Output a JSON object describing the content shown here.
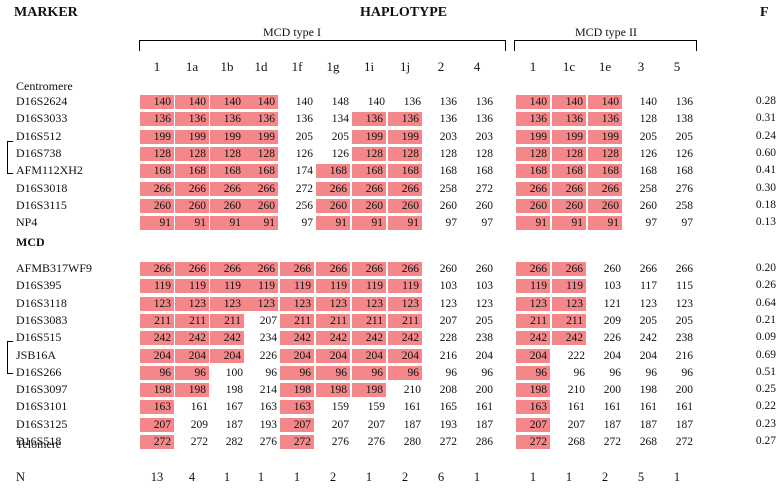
{
  "headers": {
    "marker": "MARKER",
    "haplotype": "HAPLOTYPE",
    "f": "F"
  },
  "groups": [
    {
      "label": "MCD type I",
      "from": 0,
      "to": 9
    },
    {
      "label": "MCD type II",
      "from": 10,
      "to": 14
    }
  ],
  "columns": [
    "1",
    "1a",
    "1b",
    "1d",
    "1f",
    "1g",
    "1i",
    "1j",
    "2",
    "4",
    "1",
    "1c",
    "1e",
    "3",
    "5"
  ],
  "sections": {
    "centromere": "Centromere",
    "mcd": "MCD",
    "telomere": "Telomere"
  },
  "highlight_color": "#f4878a",
  "block1": [
    {
      "marker": "D16S2624",
      "values": [
        "140",
        "140",
        "140",
        "140",
        "140",
        "148",
        "140",
        "136",
        "136",
        "136",
        "140",
        "140",
        "140",
        "140",
        "136"
      ],
      "hl": [
        0,
        1,
        2,
        3,
        10,
        11,
        12
      ],
      "f": "0.28"
    },
    {
      "marker": "D16S3033",
      "values": [
        "136",
        "136",
        "136",
        "136",
        "136",
        "134",
        "136",
        "136",
        "136",
        "136",
        "136",
        "136",
        "136",
        "128",
        "138"
      ],
      "hl": [
        0,
        1,
        2,
        3,
        6,
        7,
        10,
        11,
        12
      ],
      "f": "0.31"
    },
    {
      "marker": "D16S512",
      "values": [
        "199",
        "199",
        "199",
        "199",
        "205",
        "205",
        "199",
        "199",
        "203",
        "203",
        "199",
        "199",
        "199",
        "205",
        "205"
      ],
      "hl": [
        0,
        1,
        2,
        3,
        6,
        7,
        10,
        11,
        12
      ],
      "f": "0.24"
    },
    {
      "marker": "D16S738",
      "values": [
        "128",
        "128",
        "128",
        "128",
        "126",
        "126",
        "128",
        "128",
        "128",
        "128",
        "128",
        "128",
        "128",
        "126",
        "126"
      ],
      "hl": [
        0,
        1,
        2,
        3,
        6,
        7,
        10,
        11,
        12
      ],
      "f": "0.60"
    },
    {
      "marker": "AFM112XH2",
      "values": [
        "168",
        "168",
        "168",
        "168",
        "174",
        "168",
        "168",
        "168",
        "168",
        "168",
        "168",
        "168",
        "168",
        "168",
        "168"
      ],
      "hl": [
        0,
        1,
        2,
        3,
        5,
        6,
        7,
        10,
        11,
        12
      ],
      "f": "0.41"
    },
    {
      "marker": "D16S3018",
      "values": [
        "266",
        "266",
        "266",
        "266",
        "272",
        "266",
        "266",
        "266",
        "258",
        "272",
        "266",
        "266",
        "266",
        "258",
        "276"
      ],
      "hl": [
        0,
        1,
        2,
        3,
        5,
        6,
        7,
        10,
        11,
        12
      ],
      "f": "0.30"
    },
    {
      "marker": "D16S3115",
      "values": [
        "260",
        "260",
        "260",
        "260",
        "256",
        "260",
        "260",
        "260",
        "260",
        "260",
        "260",
        "260",
        "260",
        "260",
        "258"
      ],
      "hl": [
        0,
        1,
        2,
        3,
        5,
        6,
        7,
        10,
        11,
        12
      ],
      "f": "0.18"
    },
    {
      "marker": "NP4",
      "values": [
        "91",
        "91",
        "91",
        "91",
        "97",
        "91",
        "91",
        "91",
        "97",
        "97",
        "91",
        "91",
        "91",
        "97",
        "97"
      ],
      "hl": [
        0,
        1,
        2,
        3,
        5,
        6,
        7,
        10,
        11,
        12
      ],
      "f": "0.13"
    }
  ],
  "block2": [
    {
      "marker": "AFMB317WF9",
      "values": [
        "266",
        "266",
        "266",
        "266",
        "266",
        "266",
        "266",
        "266",
        "260",
        "260",
        "266",
        "266",
        "260",
        "266",
        "266"
      ],
      "hl": [
        0,
        1,
        2,
        3,
        4,
        5,
        6,
        7,
        10,
        11
      ],
      "f": "0.20"
    },
    {
      "marker": "D16S395",
      "values": [
        "119",
        "119",
        "119",
        "119",
        "119",
        "119",
        "119",
        "119",
        "103",
        "103",
        "119",
        "119",
        "103",
        "117",
        "115"
      ],
      "hl": [
        0,
        1,
        2,
        3,
        4,
        5,
        6,
        7,
        10,
        11
      ],
      "f": "0.26"
    },
    {
      "marker": "D16S3118",
      "values": [
        "123",
        "123",
        "123",
        "123",
        "123",
        "123",
        "123",
        "123",
        "123",
        "123",
        "123",
        "123",
        "121",
        "123",
        "123"
      ],
      "hl": [
        0,
        1,
        2,
        3,
        4,
        5,
        6,
        7,
        10,
        11
      ],
      "f": "0.64"
    },
    {
      "marker": "D16S3083",
      "values": [
        "211",
        "211",
        "211",
        "207",
        "211",
        "211",
        "211",
        "211",
        "207",
        "205",
        "211",
        "211",
        "209",
        "205",
        "205"
      ],
      "hl": [
        0,
        1,
        2,
        4,
        5,
        6,
        7,
        10,
        11
      ],
      "f": "0.21"
    },
    {
      "marker": "D16S515",
      "values": [
        "242",
        "242",
        "242",
        "234",
        "242",
        "242",
        "242",
        "242",
        "228",
        "238",
        "242",
        "242",
        "226",
        "242",
        "238"
      ],
      "hl": [
        0,
        1,
        2,
        4,
        5,
        6,
        7,
        10,
        11
      ],
      "f": "0.09"
    },
    {
      "marker": "JSB16A",
      "values": [
        "204",
        "204",
        "204",
        "226",
        "204",
        "204",
        "204",
        "204",
        "216",
        "204",
        "204",
        "222",
        "204",
        "204",
        "216"
      ],
      "hl": [
        0,
        1,
        2,
        4,
        5,
        6,
        7,
        10
      ],
      "f": "0.69"
    },
    {
      "marker": "D16S266",
      "values": [
        "96",
        "96",
        "100",
        "96",
        "96",
        "96",
        "96",
        "96",
        "96",
        "96",
        "96",
        "96",
        "96",
        "96",
        "96"
      ],
      "hl": [
        0,
        1,
        4,
        5,
        6,
        7,
        10
      ],
      "f": "0.51"
    },
    {
      "marker": "D16S3097",
      "values": [
        "198",
        "198",
        "198",
        "214",
        "198",
        "198",
        "198",
        "210",
        "208",
        "200",
        "198",
        "210",
        "200",
        "198",
        "200"
      ],
      "hl": [
        0,
        1,
        4,
        5,
        6,
        10
      ],
      "f": "0.25"
    },
    {
      "marker": "D16S3101",
      "values": [
        "163",
        "161",
        "167",
        "163",
        "163",
        "159",
        "159",
        "161",
        "165",
        "161",
        "163",
        "161",
        "161",
        "161",
        "161"
      ],
      "hl": [
        0,
        4,
        10
      ],
      "f": "0.22"
    },
    {
      "marker": "D16S3125",
      "values": [
        "207",
        "209",
        "187",
        "193",
        "207",
        "207",
        "207",
        "187",
        "193",
        "187",
        "207",
        "207",
        "187",
        "187",
        "187"
      ],
      "hl": [
        0,
        4,
        10
      ],
      "f": "0.23"
    },
    {
      "marker": "D16S518",
      "values": [
        "272",
        "272",
        "282",
        "276",
        "272",
        "276",
        "276",
        "280",
        "272",
        "286",
        "272",
        "268",
        "272",
        "268",
        "272"
      ],
      "hl": [
        0,
        4,
        10
      ],
      "f": "0.27"
    }
  ],
  "n_label": "N",
  "n_values": [
    "13",
    "4",
    "1",
    "1",
    "1",
    "2",
    "1",
    "2",
    "6",
    "1",
    "1",
    "1",
    "2",
    "5",
    "1"
  ]
}
